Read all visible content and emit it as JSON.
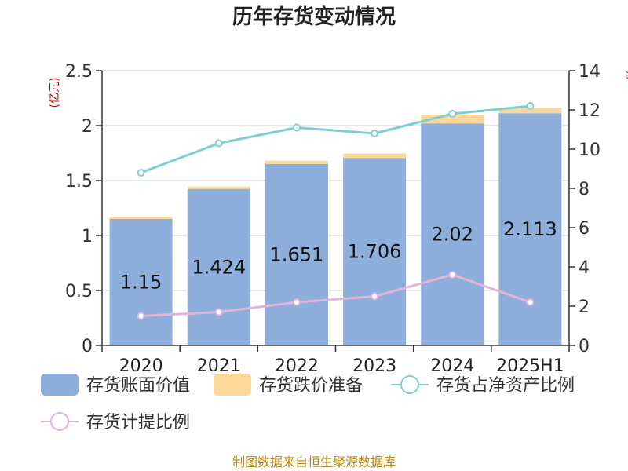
{
  "chart_data": {
    "type": "bar",
    "title": "历年存货变动情况",
    "categories": [
      "2020",
      "2021",
      "2022",
      "2023",
      "2024",
      "2025H1"
    ],
    "left_unit": "(亿元)",
    "right_unit": "%",
    "left_ylim": [
      0,
      2.5
    ],
    "left_ticks": [
      "0",
      "0.5",
      "1",
      "1.5",
      "2",
      "2.5"
    ],
    "right_ylim": [
      0,
      14
    ],
    "right_ticks": [
      "0",
      "2",
      "4",
      "6",
      "8",
      "10",
      "12",
      "14"
    ],
    "series": [
      {
        "name": "存货账面价值",
        "kind": "bar",
        "color": "#8eaedb",
        "values": [
          1.15,
          1.424,
          1.651,
          1.706,
          2.02,
          2.113
        ],
        "labels": [
          "1.15",
          "1.424",
          "1.651",
          "1.706",
          "2.02",
          "2.113"
        ]
      },
      {
        "name": "存货跌价准备",
        "kind": "bar-stack",
        "color": "#fbd899",
        "values": [
          0.02,
          0.02,
          0.03,
          0.04,
          0.08,
          0.05
        ]
      },
      {
        "name": "存货占净资产比例",
        "kind": "line",
        "axis": "right",
        "color": "#7ecfcf",
        "values": [
          8.8,
          10.3,
          11.1,
          10.8,
          11.8,
          12.2
        ]
      },
      {
        "name": "存货计提比例",
        "kind": "line",
        "axis": "right",
        "color": "#e2b4dc",
        "values": [
          1.5,
          1.7,
          2.2,
          2.5,
          3.6,
          2.2
        ]
      }
    ],
    "grid": true,
    "legend_position": "bottom",
    "source": "制图数据来自恒生聚源数据库"
  }
}
